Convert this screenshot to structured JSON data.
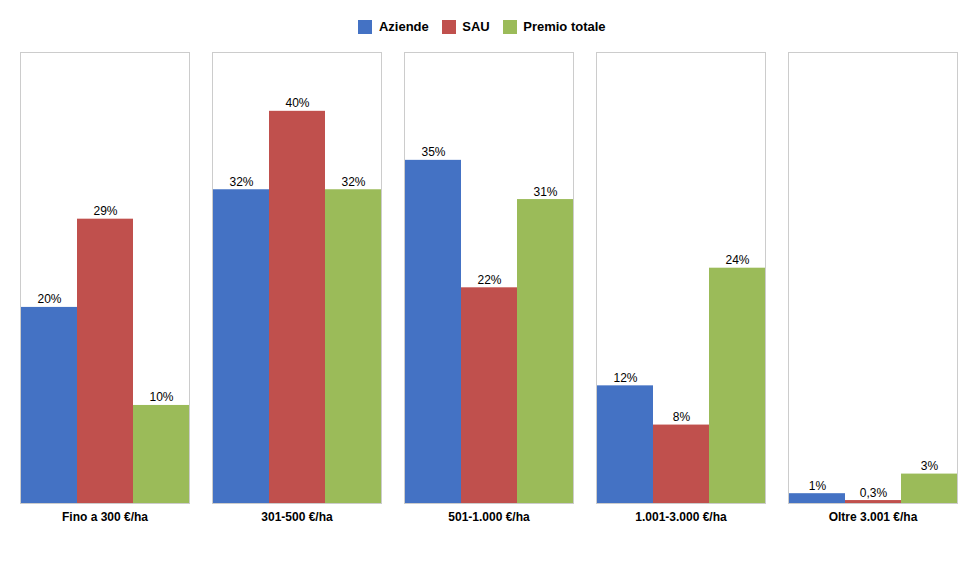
{
  "chart_data": {
    "type": "bar",
    "categories": [
      "Fino a 300 €/ha",
      "301-500 €/ha",
      "501-1.000 €/ha",
      "1.001-3.000 €/ha",
      "Oltre 3.001 €/ha"
    ],
    "series": [
      {
        "name": "Aziende",
        "color": "#4472C4",
        "values": [
          20,
          32,
          35,
          12,
          1
        ],
        "value_labels": [
          "20%",
          "32%",
          "35%",
          "12%",
          "1%"
        ]
      },
      {
        "name": "SAU",
        "color": "#C0504D",
        "values": [
          29,
          40,
          22,
          8,
          0.3
        ],
        "value_labels": [
          "29%",
          "40%",
          "22%",
          "8%",
          "0,3%"
        ]
      },
      {
        "name": "Premio totale",
        "color": "#9BBB59",
        "values": [
          10,
          32,
          31,
          24,
          3
        ],
        "value_labels": [
          "10%",
          "32%",
          "31%",
          "24%",
          "3%"
        ]
      }
    ],
    "ylim": [
      0,
      46
    ],
    "yticks": [],
    "tick_labels": "x",
    "data_labels": true,
    "legend": "top",
    "grid": false
  }
}
